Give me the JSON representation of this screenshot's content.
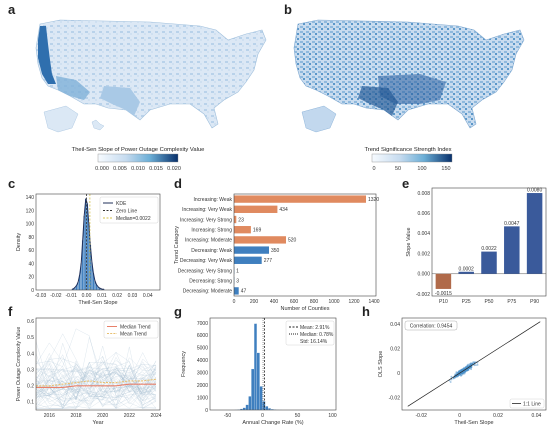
{
  "colors": {
    "blue": "#3f7fbf",
    "blue_dark": "#08306b",
    "orange": "#e08a5f",
    "brown": "#b06a4a",
    "dark_blue_bar": "#3a5a9b",
    "kde": "#1f2f5a",
    "zero_line": "#333333",
    "median_line": "#d4c04a",
    "median_trend": "#e8806a",
    "mean_trend": "#e8c070",
    "ols_point": "#4a90c8",
    "map_land": "#e2ecf7"
  },
  "panels": {
    "a": {
      "letter": "a",
      "colorbar_label": "Theil-Sen Slope of Power Outage Complexity Value",
      "colorbar_ticks": [
        "0.000",
        "0.005",
        "0.010",
        "0.015",
        "0.020"
      ]
    },
    "b": {
      "letter": "b",
      "colorbar_label": "Trend Significance Strength Index",
      "colorbar_ticks": [
        "0",
        "50",
        "100",
        "150"
      ]
    },
    "c": {
      "letter": "c",
      "legend": [
        "KDE",
        "Zero Line",
        "Median=0.0022"
      ]
    },
    "d": {
      "letter": "d"
    },
    "e": {
      "letter": "e"
    },
    "f": {
      "letter": "f",
      "legend": [
        "Median Trend",
        "Mean Trend"
      ]
    },
    "g": {
      "letter": "g",
      "legend": [
        "Mean: 2.91%",
        "Median: 0.78%",
        "Std: 16.14%"
      ]
    },
    "h": {
      "letter": "h",
      "annotation": "Correlation: 0.9454",
      "legend": [
        "1:1 Line"
      ]
    }
  },
  "chart_data": [
    {
      "panel": "c",
      "type": "histogram",
      "xlabel": "Theil-Sen Slope",
      "ylabel": "Density",
      "xlim": [
        -0.033,
        0.048
      ],
      "ylim": [
        0,
        145
      ],
      "xticks": [
        "-0.03",
        "-0.02",
        "-0.01",
        "0.00",
        "0.01",
        "0.02",
        "0.03",
        "0.04"
      ],
      "xtick_values": [
        -0.03,
        -0.02,
        -0.01,
        0.0,
        0.01,
        0.02,
        0.03,
        0.04
      ],
      "yticks": [
        0,
        20,
        40,
        60,
        80,
        100,
        120,
        140
      ],
      "bin_edges_start": -0.01,
      "bin_width": 0.001,
      "values": [
        1,
        2,
        4,
        7,
        12,
        22,
        40,
        75,
        112,
        138,
        130,
        100,
        68,
        42,
        25,
        14,
        8,
        5,
        3,
        2,
        1,
        1
      ],
      "zero_line": 0,
      "median": 0.0022
    },
    {
      "panel": "d",
      "type": "bar",
      "orientation": "horizontal",
      "xlabel": "Number of Counties",
      "ylabel": "Trend Category",
      "xlim": [
        0,
        1420
      ],
      "xticks": [
        0,
        200,
        400,
        600,
        800,
        1000,
        1200,
        1400
      ],
      "categories": [
        "Increasing: Weak",
        "Increasing: Very Weak",
        "Increasing: Very Strong",
        "Increasing: Strong",
        "Increasing: Moderate",
        "Decreasing: Weak",
        "Decreasing: Very Weak",
        "Decreasing: Very Strong",
        "Decreasing: Strong",
        "Decreasing: Moderate"
      ],
      "values": [
        1320,
        434,
        23,
        169,
        520,
        350,
        277,
        1,
        3,
        47
      ],
      "value_labels": [
        "1320",
        "434",
        "23",
        "169",
        "520",
        "350",
        "277",
        "1",
        "3",
        "47"
      ],
      "groups": [
        "increasing",
        "increasing",
        "increasing",
        "increasing",
        "increasing",
        "decreasing",
        "decreasing",
        "decreasing",
        "decreasing",
        "decreasing"
      ]
    },
    {
      "panel": "e",
      "type": "bar",
      "ylabel": "Slope Value",
      "ylim": [
        -0.0022,
        0.0085
      ],
      "yticks": [
        -0.002,
        0.0,
        0.002,
        0.004,
        0.006,
        0.008
      ],
      "ytick_labels": [
        "-0.002",
        "0.000",
        "0.002",
        "0.004",
        "0.006",
        "0.008"
      ],
      "categories": [
        "P10",
        "P25",
        "P50",
        "P75",
        "P90"
      ],
      "values": [
        -0.0015,
        0.0002,
        0.0022,
        0.0047,
        0.008
      ],
      "value_labels": [
        "-0.0015",
        "0.0002",
        "0.0022",
        "0.0047",
        "0.0080"
      ]
    },
    {
      "panel": "f",
      "type": "line",
      "xlabel": "Year",
      "ylabel": "Power Outage Complexity Value",
      "xlim": [
        2015,
        2024.3
      ],
      "ylim": [
        0.05,
        0.62
      ],
      "xticks": [
        2016,
        2018,
        2020,
        2022,
        2024
      ],
      "yticks": [
        0.1,
        0.2,
        0.3,
        0.4,
        0.5,
        0.6
      ],
      "x": [
        2015,
        2016,
        2017,
        2018,
        2019,
        2020,
        2021,
        2022,
        2023,
        2024
      ],
      "series": [
        {
          "name": "Median Trend",
          "values": [
            0.19,
            0.19,
            0.19,
            0.2,
            0.2,
            0.2,
            0.2,
            0.21,
            0.21,
            0.21
          ]
        },
        {
          "name": "Mean Trend",
          "values": [
            0.2,
            0.2,
            0.21,
            0.22,
            0.23,
            0.22,
            0.22,
            0.23,
            0.23,
            0.24
          ]
        }
      ]
    },
    {
      "panel": "g",
      "type": "histogram",
      "xlabel": "Annual Change Rate (%)",
      "ylabel": "Frequency",
      "xlim": [
        -75,
        105
      ],
      "ylim": [
        0,
        7400
      ],
      "xticks": [
        -50,
        0,
        50,
        100
      ],
      "yticks": [
        0,
        1000,
        2000,
        3000,
        4000,
        5000,
        6000,
        7000
      ],
      "bin_edges_start": -40,
      "bin_width": 4,
      "values": [
        20,
        40,
        90,
        180,
        420,
        1100,
        3300,
        6950,
        4600,
        1900,
        700,
        300,
        140,
        70,
        40,
        20,
        10
      ],
      "mean": 2.91,
      "median": 0.78
    },
    {
      "panel": "h",
      "type": "scatter",
      "xlabel": "Theil-Sen Slope",
      "ylabel": "OLS Slope",
      "xlim": [
        -0.03,
        0.045
      ],
      "ylim": [
        -0.03,
        0.045
      ],
      "xticks": [
        -0.02,
        0.0,
        0.02,
        0.04
      ],
      "yticks": [
        -0.02,
        0.0,
        0.02,
        0.04
      ],
      "correlation": 0.9454
    }
  ]
}
